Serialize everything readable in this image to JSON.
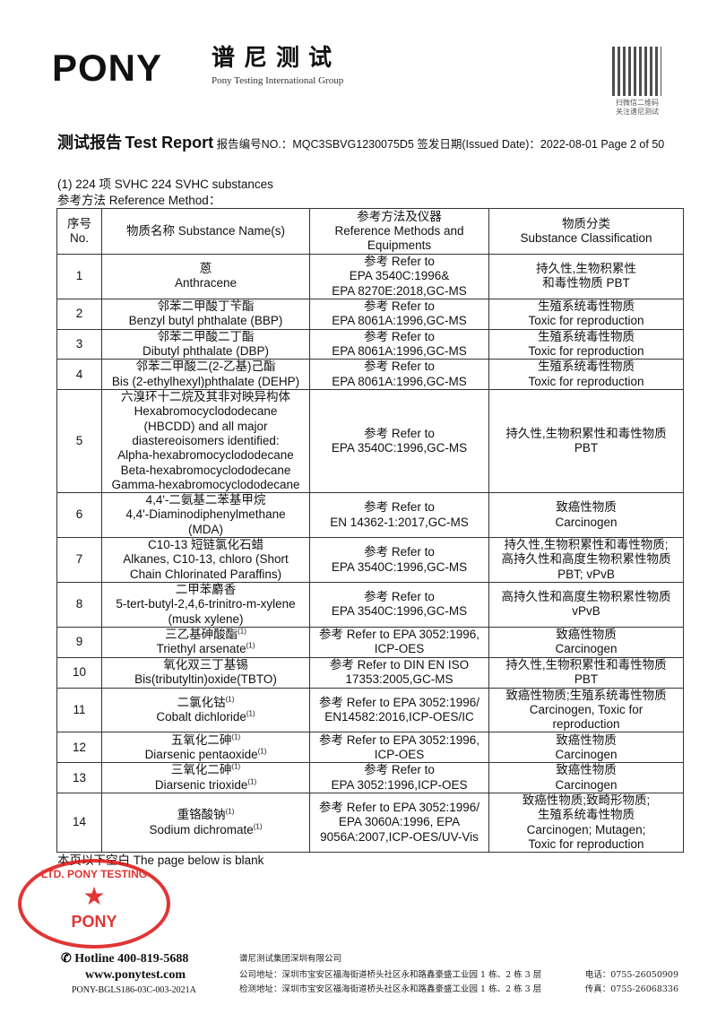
{
  "header": {
    "logo": "PONY",
    "logo_cn": "谱尼测试",
    "logo_en": "Pony Testing International Group",
    "qr_text": [
      "扫微信二维码",
      "关注谱尼测试"
    ]
  },
  "report": {
    "title_cn": "测试报告",
    "title_en": "Test Report",
    "no_label": "报告编号NO.：",
    "no": "MQC3SBVG1230075D5",
    "date_label": "签发日期(Issued Date)：",
    "date": "2022-08-01",
    "page": "Page 2 of 50"
  },
  "section": {
    "title": "(1) 224 项 SVHC 224 SVHC substances",
    "method": "参考方法 Reference Method："
  },
  "table": {
    "headers": [
      [
        "序号",
        "No."
      ],
      [
        "物质名称 Substance Name(s)"
      ],
      [
        "参考方法及仪器",
        "Reference Methods and",
        "Equipments"
      ],
      [
        "物质分类",
        "Substance Classification"
      ]
    ],
    "rows": [
      {
        "no": "1",
        "name": [
          "蒽",
          "Anthracene"
        ],
        "method": [
          "参考 Refer to",
          "EPA 3540C:1996&",
          "EPA 8270E:2018,GC-MS"
        ],
        "cls": [
          "持久性,生物积累性",
          "和毒性物质 PBT"
        ]
      },
      {
        "no": "2",
        "name": [
          "邻苯二甲酸丁苄酯",
          "Benzyl butyl phthalate (BBP)"
        ],
        "method": [
          "参考 Refer to",
          "EPA 8061A:1996,GC-MS"
        ],
        "cls": [
          "生殖系统毒性物质",
          "Toxic for reproduction"
        ]
      },
      {
        "no": "3",
        "name": [
          "邻苯二甲酸二丁酯",
          "Dibutyl phthalate (DBP)"
        ],
        "method": [
          "参考 Refer to",
          "EPA 8061A:1996,GC-MS"
        ],
        "cls": [
          "生殖系统毒性物质",
          "Toxic for reproduction"
        ]
      },
      {
        "no": "4",
        "name": [
          "邻苯二甲酸二(2-乙基)己酯",
          "Bis (2-ethylhexyl)phthalate (DEHP)"
        ],
        "method": [
          "参考 Refer to",
          "EPA 8061A:1996,GC-MS"
        ],
        "cls": [
          "生殖系统毒性物质",
          "Toxic for reproduction"
        ]
      },
      {
        "no": "5",
        "name": [
          "六溴环十二烷及其非对映异构体",
          "Hexabromocyclododecane",
          "(HBCDD) and all major",
          "diastereoisomers identified:",
          "Alpha-hexabromocyclododecane",
          "Beta-hexabromocyclododecane",
          "Gamma-hexabromocyclododecane"
        ],
        "method": [
          "参考 Refer to",
          "EPA 3540C:1996,GC-MS"
        ],
        "cls": [
          "持久性,生物积累性和毒性物质",
          "PBT"
        ]
      },
      {
        "no": "6",
        "name": [
          "4,4'-二氨基二苯基甲烷",
          "4,4'-Diaminodiphenylmethane",
          "(MDA)"
        ],
        "method": [
          "参考 Refer to",
          "EN 14362-1:2017,GC-MS"
        ],
        "cls": [
          "致癌性物质",
          "Carcinogen"
        ]
      },
      {
        "no": "7",
        "name": [
          "C10-13 短链氯化石蜡",
          "Alkanes, C10-13, chloro (Short",
          "Chain Chlorinated Paraffins)"
        ],
        "method": [
          "参考 Refer to",
          "EPA 3540C:1996,GC-MS"
        ],
        "cls": [
          "持久性,生物积累性和毒性物质;",
          "高持久性和高度生物积累性物质",
          "PBT; vPvB"
        ]
      },
      {
        "no": "8",
        "name": [
          "二甲苯麝香",
          "5-tert-butyl-2,4,6-trinitro-m-xylene",
          "(musk xylene)"
        ],
        "method": [
          "参考 Refer to",
          "EPA 3540C:1996,GC-MS"
        ],
        "cls": [
          "高持久性和高度生物积累性物质",
          "vPvB"
        ]
      },
      {
        "no": "9",
        "name": [
          "三乙基砷酸酯",
          "Triethyl arsenate"
        ],
        "sup": "(1)",
        "method": [
          "参考 Refer to EPA 3052:1996,",
          "ICP-OES"
        ],
        "cls": [
          "致癌性物质",
          "Carcinogen"
        ]
      },
      {
        "no": "10",
        "name": [
          "氧化双三丁基锡",
          "Bis(tributyltin)oxide(TBTO)"
        ],
        "method": [
          "参考 Refer to DIN EN ISO",
          "17353:2005,GC-MS"
        ],
        "cls": [
          "持久性,生物积累性和毒性物质",
          "PBT"
        ]
      },
      {
        "no": "11",
        "name": [
          "二氯化钴",
          "Cobalt dichloride"
        ],
        "sup": "(1)",
        "method": [
          "参考 Refer to EPA 3052:1996/",
          "EN14582:2016,ICP-OES/IC"
        ],
        "cls": [
          "致癌性物质;生殖系统毒性物质",
          "Carcinogen, Toxic for",
          "reproduction"
        ]
      },
      {
        "no": "12",
        "name": [
          "五氧化二砷",
          "Diarsenic pentaoxide"
        ],
        "sup": "(1)",
        "method": [
          "参考 Refer to EPA 3052:1996,",
          "ICP-OES"
        ],
        "cls": [
          "致癌性物质",
          "Carcinogen"
        ]
      },
      {
        "no": "13",
        "name": [
          "三氧化二砷",
          "Diarsenic trioxide"
        ],
        "sup": "(1)",
        "method": [
          "参考 Refer to",
          "EPA 3052:1996,ICP-OES"
        ],
        "cls": [
          "致癌性物质",
          "Carcinogen"
        ]
      },
      {
        "no": "14",
        "name": [
          "重铬酸钠",
          "Sodium dichromate"
        ],
        "sup": "(1)",
        "method": [
          "参考 Refer to EPA 3052:1996/",
          "EPA 3060A:1996, EPA",
          "9056A:2007,ICP-OES/UV-Vis"
        ],
        "cls": [
          "致癌性物质;致畸形物质;",
          "生殖系统毒性物质",
          "Carcinogen; Mutagen;",
          "Toxic for reproduction"
        ]
      }
    ]
  },
  "blank_note": "本页以下空白 The page below is blank",
  "stamp": {
    "ring": "LTD. PONY TESTING",
    "brand": "PONY"
  },
  "footer": {
    "hotline": "Hotline 400-819-5688",
    "website": "www.ponytest.com",
    "code": "PONY-BGLS186-03C-003-2021A",
    "company": "谱尼测试集团深圳有限公司",
    "address": "公司地址：深圳市宝安区福海街道桥头社区永和路鑫豪盛工业园 1 栋、2 栋 3 层",
    "lab_address": "检测地址：深圳市宝安区福海街道桥头社区永和路鑫豪盛工业园 1 栋、2 栋 3 层",
    "tel": "电话：0755-26050909",
    "fax": "传真：0755-26068336"
  }
}
